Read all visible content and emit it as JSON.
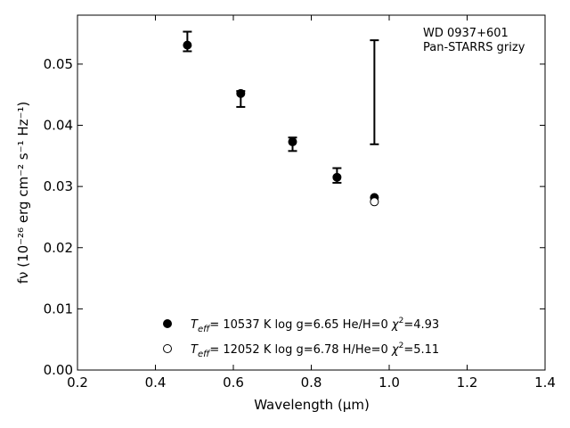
{
  "chart_data": {
    "type": "scatter",
    "xlabel": "Wavelength (μm)",
    "ylabel": "fν (10⁻²⁶ erg cm⁻² s⁻¹ Hz⁻¹)",
    "xlim": [
      0.2,
      1.4
    ],
    "ylim": [
      0.0,
      0.058
    ],
    "x_ticks": [
      "0.2",
      "0.4",
      "0.6",
      "0.8",
      "1.0",
      "1.2",
      "1.4"
    ],
    "y_ticks": [
      "0.00",
      "0.01",
      "0.02",
      "0.03",
      "0.04",
      "0.05"
    ],
    "grid": false,
    "legend_placement": "bottom-center",
    "annotation": [
      "WD 0937+601",
      "Pan-STARRS grizy"
    ],
    "observed": {
      "x": [
        0.482,
        0.619,
        0.752,
        0.866,
        0.962
      ],
      "y": [
        0.0537,
        0.0443,
        0.0369,
        0.0318,
        0.0454
      ],
      "yerr": [
        0.0016,
        0.0013,
        0.0011,
        0.0012,
        0.0085
      ]
    },
    "series": [
      {
        "marker": "filled",
        "x": [
          0.482,
          0.619,
          0.752,
          0.866,
          0.962
        ],
        "y": [
          0.0531,
          0.0452,
          0.0373,
          0.0315,
          0.0282
        ],
        "legend": {
          "teff_prefix": "T",
          "teff_sub": "eff",
          "teff_value": "= 10537 K",
          "logg": "log g=6.65",
          "comp": "He/H=0",
          "chi_prefix": "χ",
          "chi_sup": "2",
          "chi_value": "=4.93"
        }
      },
      {
        "marker": "open",
        "x": [
          0.962
        ],
        "y": [
          0.0275
        ],
        "legend": {
          "teff_prefix": "T",
          "teff_sub": "eff",
          "teff_value": "= 12052 K",
          "logg": "log g=6.78",
          "comp": "H/He=0",
          "chi_prefix": "χ",
          "chi_sup": "2",
          "chi_value": "=5.11"
        }
      }
    ]
  }
}
